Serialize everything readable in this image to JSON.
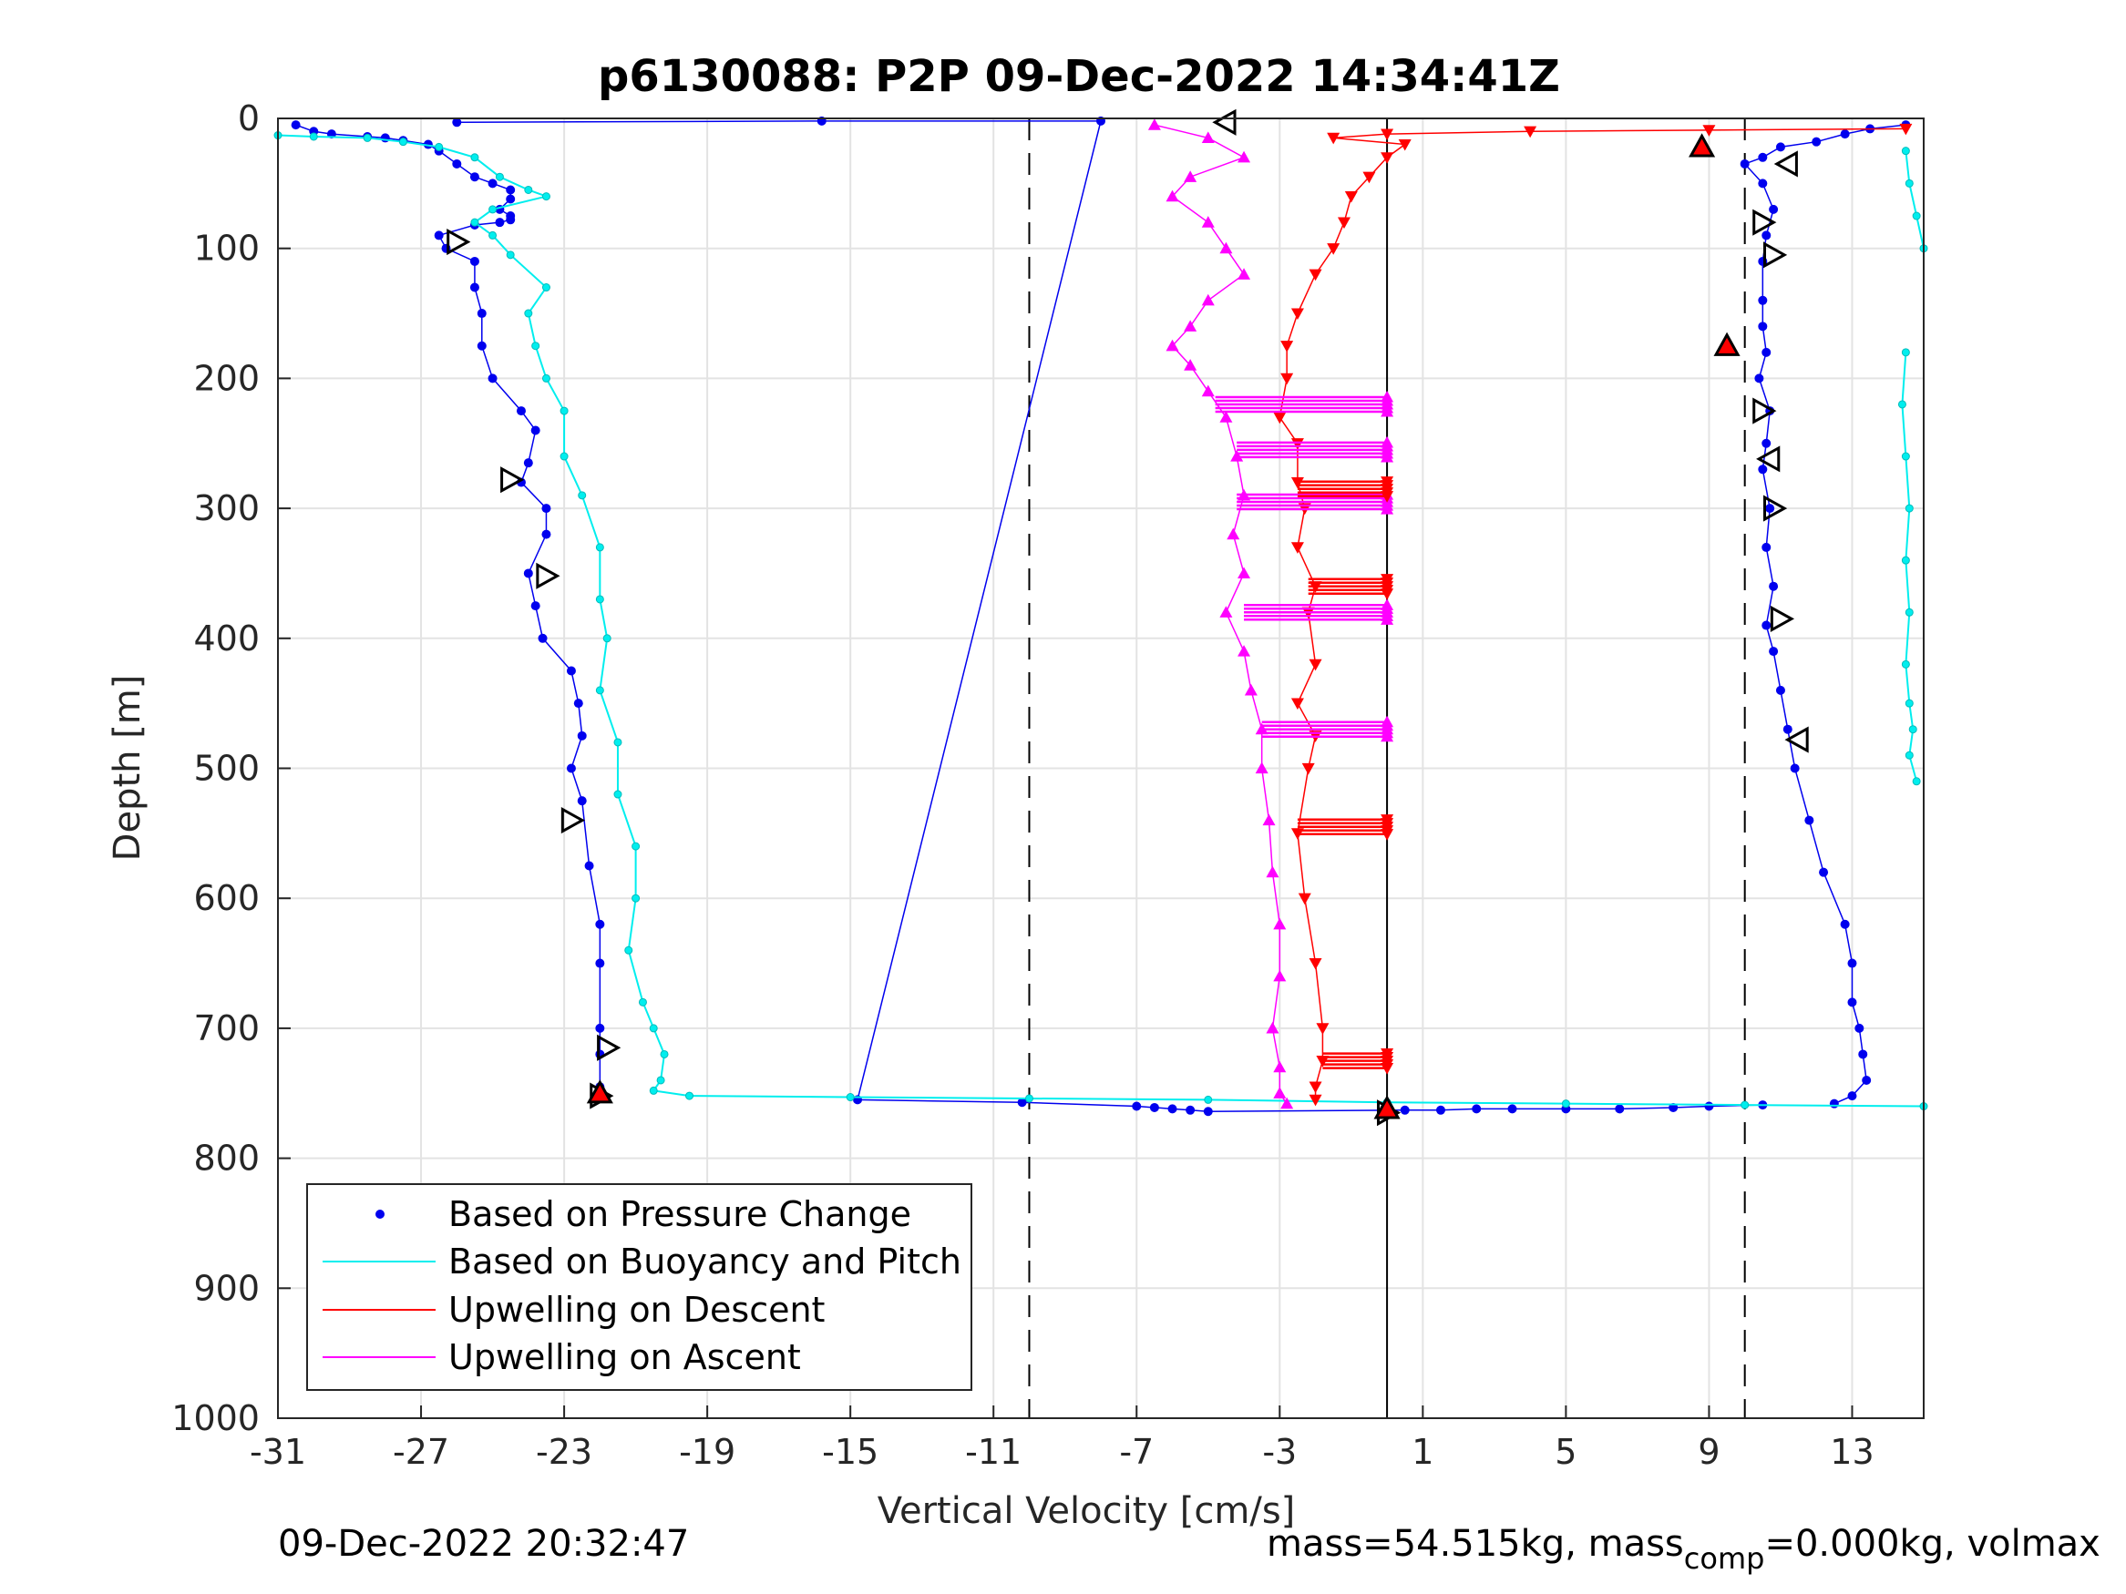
{
  "chart_data": {
    "type": "scatter",
    "title": "p6130088: P2P 09-Dec-2022 14:34:41Z",
    "xlabel": "Vertical Velocity [cm/s]",
    "ylabel": "Depth [m]",
    "xlim": [
      -31,
      15
    ],
    "ylim": [
      0,
      1000
    ],
    "y_reversed": true,
    "xticks": [
      -31,
      -27,
      -23,
      -19,
      -15,
      -11,
      -7,
      -3,
      1,
      5,
      9,
      13
    ],
    "xtick_labels": [
      "-31",
      "-27",
      "-23",
      "-19",
      "-15",
      "-11",
      "-7",
      "-3",
      "1",
      "5",
      "9",
      "13"
    ],
    "yticks": [
      0,
      100,
      200,
      300,
      400,
      500,
      600,
      700,
      800,
      900,
      1000
    ],
    "ytick_labels": [
      "0",
      "100",
      "200",
      "300",
      "400",
      "500",
      "600",
      "700",
      "800",
      "900",
      "1000"
    ],
    "grid": true,
    "legend_position": "bottom-left",
    "reference_lines": [
      {
        "x": -10,
        "style": "dashed",
        "color": "#000000"
      },
      {
        "x": 10,
        "style": "dashed",
        "color": "#000000"
      },
      {
        "x": 0,
        "style": "solid",
        "color": "#000000"
      }
    ],
    "series": [
      {
        "name": "Based on Pressure Change",
        "color": "#0000ee",
        "marker": "dot",
        "groups": [
          {
            "x": [
              -30.5,
              -30.0,
              -29.5,
              -28.5,
              -28.0,
              -27.5,
              -26.8,
              -26.5,
              -26.0,
              -25.5,
              -25.0,
              -24.5,
              -24.5,
              -24.8,
              -24.5,
              -24.5,
              -24.8,
              -25.5,
              -26.5,
              -26.3,
              -25.5,
              -25.5,
              -25.3,
              -25.3,
              -25.0,
              -24.2,
              -23.8,
              -24.0,
              -24.2,
              -23.5,
              -23.5,
              -24.0,
              -23.8,
              -23.6,
              -22.8,
              -22.6,
              -22.5,
              -22.8,
              -22.5,
              -22.3,
              -22.0,
              -22.0,
              -22.0,
              -22.0,
              -22.0
            ],
            "y": [
              5,
              10,
              12,
              14,
              15,
              17,
              20,
              25,
              35,
              45,
              50,
              55,
              62,
              70,
              75,
              78,
              80,
              82,
              90,
              100,
              110,
              130,
              150,
              175,
              200,
              225,
              240,
              265,
              280,
              300,
              320,
              350,
              375,
              400,
              425,
              450,
              475,
              500,
              525,
              575,
              620,
              650,
              700,
              720,
              745
            ]
          },
          {
            "x": [
              14.5,
              13.5,
              12.8,
              12.0,
              11.0,
              10.5,
              10.0,
              10.5,
              10.8,
              10.6,
              10.5,
              10.5,
              10.5,
              10.6,
              10.4,
              10.7,
              10.6,
              10.5,
              10.7,
              10.6,
              10.8,
              10.6,
              10.8,
              11.0,
              11.2,
              11.4,
              11.8,
              12.2,
              12.8,
              13.0,
              13.0,
              13.2,
              13.3,
              13.4,
              13.0,
              12.5
            ],
            "y": [
              5,
              8,
              12,
              18,
              22,
              30,
              35,
              50,
              70,
              90,
              110,
              140,
              160,
              180,
              200,
              225,
              250,
              270,
              300,
              330,
              360,
              390,
              410,
              440,
              470,
              500,
              540,
              580,
              620,
              650,
              680,
              700,
              720,
              740,
              752,
              758
            ]
          },
          {
            "x": [
              -26.0,
              -15.8,
              -8.0,
              -14.8,
              -10.2,
              -7.0,
              -6.5,
              -6.0,
              -5.5,
              -5.0,
              0.5,
              1.5,
              2.5,
              3.5,
              5.0,
              6.5,
              8.0,
              9.0,
              10.5
            ],
            "y": [
              3,
              2,
              2,
              755,
              757,
              760,
              761,
              762,
              763,
              764,
              763,
              763,
              762,
              762,
              762,
              762,
              761,
              760,
              759
            ]
          }
        ]
      },
      {
        "name": "Based on Buoyancy and Pitch",
        "color": "#00eeee",
        "marker": "line",
        "groups": [
          {
            "x": [
              -31.0,
              -30.0,
              -28.5,
              -27.5,
              -26.5,
              -25.5,
              -24.8,
              -24.0,
              -23.5,
              -25.0,
              -25.5,
              -25.0,
              -24.5,
              -23.5,
              -24.0,
              -23.8,
              -23.5,
              -23.0,
              -23.0,
              -22.5,
              -22.0,
              -22.0,
              -21.8,
              -22.0,
              -21.5,
              -21.5,
              -21.0,
              -21.0,
              -21.2,
              -20.8,
              -20.5,
              -20.2,
              -20.3,
              -20.5,
              -19.5,
              -15.0,
              -10.0,
              -5.0,
              0.0,
              5.0,
              10.0,
              15.0
            ],
            "y": [
              13,
              14,
              15,
              18,
              22,
              30,
              45,
              55,
              60,
              70,
              80,
              90,
              105,
              130,
              150,
              175,
              200,
              225,
              260,
              290,
              330,
              370,
              400,
              440,
              480,
              520,
              560,
              600,
              640,
              680,
              700,
              720,
              740,
              748,
              752,
              753,
              754,
              755,
              757,
              758,
              759,
              760
            ]
          },
          {
            "x": [
              14.5,
              14.6,
              14.8,
              15.0
            ],
            "y": [
              25,
              50,
              75,
              100
            ]
          },
          {
            "x": [
              14.5,
              14.4,
              14.5,
              14.6,
              14.5,
              14.6,
              14.5,
              14.6,
              14.7,
              14.6,
              14.8
            ],
            "y": [
              180,
              220,
              260,
              300,
              340,
              380,
              420,
              450,
              470,
              490,
              510
            ]
          }
        ]
      },
      {
        "name": "Upwelling on Descent",
        "color": "#ff0000",
        "marker": "triangle-down",
        "groups": [
          {
            "x": [
              14.5,
              9.0,
              4.0,
              0.0,
              -1.5,
              0.5,
              0.0,
              -0.5,
              -1.0,
              -1.2,
              -1.5,
              -2.0,
              -2.5,
              -2.8,
              -2.8,
              -3.0,
              -2.5,
              -2.5,
              -2.3,
              -2.5,
              -2.0,
              -2.2,
              -2.0,
              -2.5,
              -2.0,
              -2.2,
              -2.5,
              -2.3,
              -2.0,
              -1.8,
              -1.8,
              -2.0,
              -2.0
            ],
            "y": [
              8,
              9,
              10,
              12,
              15,
              20,
              30,
              45,
              60,
              80,
              100,
              120,
              150,
              175,
              200,
              230,
              250,
              280,
              300,
              330,
              360,
              380,
              420,
              450,
              475,
              500,
              550,
              600,
              650,
              700,
              725,
              745,
              755
            ]
          }
        ]
      },
      {
        "name": "Upwelling on Ascent",
        "color": "#ff00ff",
        "marker": "triangle-up",
        "groups": [
          {
            "x": [
              -6.5,
              -5.0,
              -4.0,
              -5.5,
              -6.0,
              -5.0,
              -4.5,
              -4.0,
              -5.0,
              -5.5,
              -6.0,
              -5.5,
              -5.0,
              -4.5,
              -4.2,
              -4.0,
              -4.3,
              -4.0,
              -4.5,
              -4.0,
              -3.8,
              -3.5,
              -3.5,
              -3.3,
              -3.2,
              -3.0,
              -3.0,
              -3.2,
              -3.0,
              -3.0,
              -2.8
            ],
            "y": [
              5,
              15,
              30,
              45,
              60,
              80,
              100,
              120,
              140,
              160,
              175,
              190,
              210,
              230,
              260,
              290,
              320,
              350,
              380,
              410,
              440,
              470,
              500,
              540,
              580,
              620,
              660,
              700,
              730,
              750,
              758
            ]
          }
        ]
      }
    ],
    "bursts": [
      {
        "series": 3,
        "y": 220,
        "x0": -4.8,
        "x1": 0
      },
      {
        "series": 3,
        "y": 255,
        "x0": -4.2,
        "x1": 0
      },
      {
        "series": 3,
        "y": 295,
        "x0": -4.2,
        "x1": 0
      },
      {
        "series": 3,
        "y": 380,
        "x0": -4.0,
        "x1": 0
      },
      {
        "series": 3,
        "y": 470,
        "x0": -3.5,
        "x1": 0
      },
      {
        "series": 2,
        "y": 285,
        "x0": -2.5,
        "x1": 0
      },
      {
        "series": 2,
        "y": 360,
        "x0": -2.2,
        "x1": 0
      },
      {
        "series": 2,
        "y": 545,
        "x0": -2.5,
        "x1": 0
      },
      {
        "series": 2,
        "y": 725,
        "x0": -1.8,
        "x1": 0
      }
    ],
    "open_triangles": [
      {
        "x": -4.5,
        "y": 3,
        "dir": "left"
      },
      {
        "x": -26.0,
        "y": 95,
        "dir": "right"
      },
      {
        "x": -24.5,
        "y": 278,
        "dir": "right"
      },
      {
        "x": -23.5,
        "y": 352,
        "dir": "right"
      },
      {
        "x": -22.8,
        "y": 540,
        "dir": "right"
      },
      {
        "x": -21.8,
        "y": 715,
        "dir": "right"
      },
      {
        "x": -22.0,
        "y": 752,
        "dir": "right"
      },
      {
        "x": 11.2,
        "y": 35,
        "dir": "left"
      },
      {
        "x": 10.5,
        "y": 80,
        "dir": "right"
      },
      {
        "x": 10.8,
        "y": 105,
        "dir": "right"
      },
      {
        "x": 10.5,
        "y": 225,
        "dir": "right"
      },
      {
        "x": 10.7,
        "y": 262,
        "dir": "left"
      },
      {
        "x": 10.8,
        "y": 300,
        "dir": "right"
      },
      {
        "x": 11.0,
        "y": 385,
        "dir": "right"
      },
      {
        "x": 11.5,
        "y": 478,
        "dir": "left"
      },
      {
        "x": 0.0,
        "y": 765,
        "dir": "right"
      }
    ],
    "red_filled_triangles": [
      {
        "x": 8.8,
        "y": 22
      },
      {
        "x": 9.5,
        "y": 175
      },
      {
        "x": -22.0,
        "y": 750
      },
      {
        "x": 0.0,
        "y": 762
      }
    ]
  },
  "footer": {
    "timestamp": "09-Dec-2022 20:32:47",
    "mass_text": "mass=54.515kg, mass",
    "mass_sub": "comp",
    "mass_tail": "=0.000kg, volmax"
  }
}
